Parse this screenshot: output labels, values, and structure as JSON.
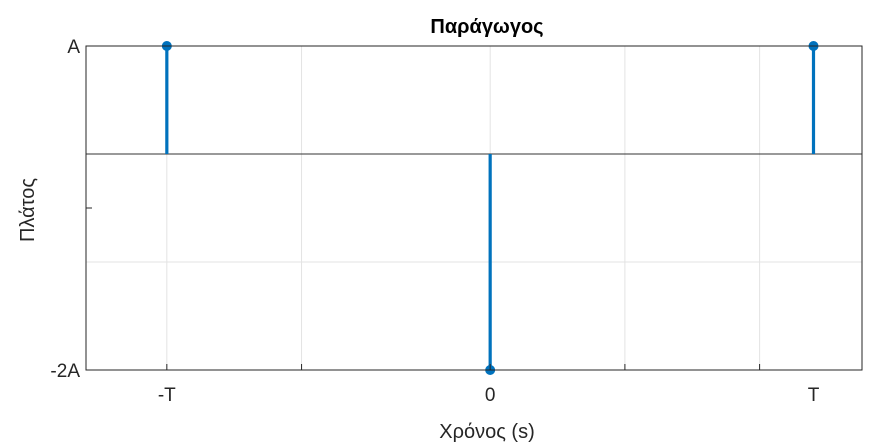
{
  "chart_data": {
    "type": "stem",
    "title": "Παράγωγος",
    "xlabel": "Χρόνος (s)",
    "ylabel": "Πλάτος",
    "xlim": [
      -1.25,
      1.15
    ],
    "ylim": [
      -2,
      1
    ],
    "x_ticks": [
      {
        "value": -1,
        "label": "-T"
      },
      {
        "value": 0,
        "label": "0"
      },
      {
        "value": 1,
        "label": "T"
      }
    ],
    "y_ticks": [
      {
        "value": 1,
        "label": "A"
      },
      {
        "value": -0.5,
        "label": ""
      },
      {
        "value": -2,
        "label": "-2A"
      }
    ],
    "x_grid": [
      -1,
      -0.5833,
      0,
      0.4167,
      0.8333
    ],
    "y_grid": [
      1,
      0,
      -1
    ],
    "grid": true,
    "baseline": 0,
    "series": [
      {
        "x": [
          -1,
          0,
          1
        ],
        "y": [
          1,
          -2,
          1
        ],
        "color": "#0072BD"
      }
    ]
  }
}
